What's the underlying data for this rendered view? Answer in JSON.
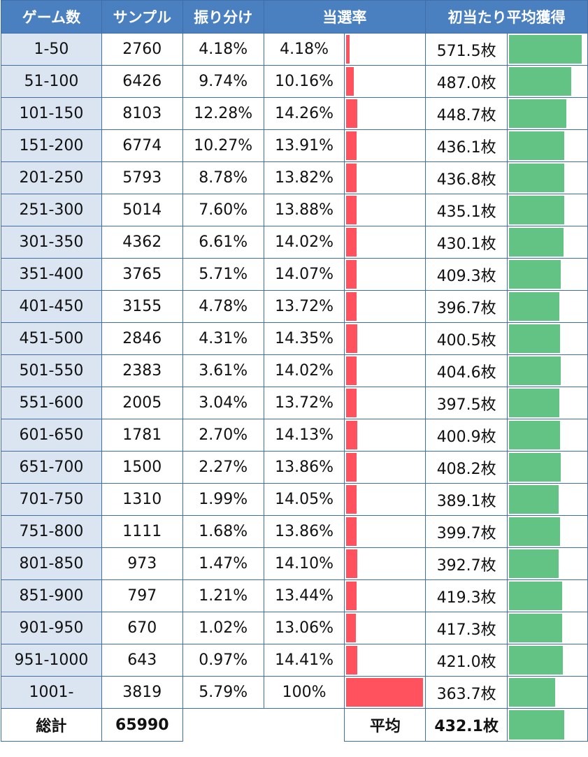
{
  "chart_data": {
    "type": "table",
    "headers": [
      "ゲーム数",
      "サンプル",
      "振り分け",
      "当選率",
      "初当たり平均獲得"
    ],
    "rows": [
      {
        "range": "1-50",
        "sample": "2760",
        "share": "4.18%",
        "rate": "4.18%",
        "rate_value": 4.18,
        "avg": "571.5枚",
        "avg_value": 571.5
      },
      {
        "range": "51-100",
        "sample": "6426",
        "share": "9.74%",
        "rate": "10.16%",
        "rate_value": 10.16,
        "avg": "487.0枚",
        "avg_value": 487.0
      },
      {
        "range": "101-150",
        "sample": "8103",
        "share": "12.28%",
        "rate": "14.26%",
        "rate_value": 14.26,
        "avg": "448.7枚",
        "avg_value": 448.7
      },
      {
        "range": "151-200",
        "sample": "6774",
        "share": "10.27%",
        "rate": "13.91%",
        "rate_value": 13.91,
        "avg": "436.1枚",
        "avg_value": 436.1
      },
      {
        "range": "201-250",
        "sample": "5793",
        "share": "8.78%",
        "rate": "13.82%",
        "rate_value": 13.82,
        "avg": "436.8枚",
        "avg_value": 436.8
      },
      {
        "range": "251-300",
        "sample": "5014",
        "share": "7.60%",
        "rate": "13.88%",
        "rate_value": 13.88,
        "avg": "435.1枚",
        "avg_value": 435.1
      },
      {
        "range": "301-350",
        "sample": "4362",
        "share": "6.61%",
        "rate": "14.02%",
        "rate_value": 14.02,
        "avg": "430.1枚",
        "avg_value": 430.1
      },
      {
        "range": "351-400",
        "sample": "3765",
        "share": "5.71%",
        "rate": "14.07%",
        "rate_value": 14.07,
        "avg": "409.3枚",
        "avg_value": 409.3
      },
      {
        "range": "401-450",
        "sample": "3155",
        "share": "4.78%",
        "rate": "13.72%",
        "rate_value": 13.72,
        "avg": "396.7枚",
        "avg_value": 396.7
      },
      {
        "range": "451-500",
        "sample": "2846",
        "share": "4.31%",
        "rate": "14.35%",
        "rate_value": 14.35,
        "avg": "400.5枚",
        "avg_value": 400.5
      },
      {
        "range": "501-550",
        "sample": "2383",
        "share": "3.61%",
        "rate": "14.02%",
        "rate_value": 14.02,
        "avg": "404.6枚",
        "avg_value": 404.6
      },
      {
        "range": "551-600",
        "sample": "2005",
        "share": "3.04%",
        "rate": "13.72%",
        "rate_value": 13.72,
        "avg": "397.5枚",
        "avg_value": 397.5
      },
      {
        "range": "601-650",
        "sample": "1781",
        "share": "2.70%",
        "rate": "14.13%",
        "rate_value": 14.13,
        "avg": "400.9枚",
        "avg_value": 400.9
      },
      {
        "range": "651-700",
        "sample": "1500",
        "share": "2.27%",
        "rate": "13.86%",
        "rate_value": 13.86,
        "avg": "408.2枚",
        "avg_value": 408.2
      },
      {
        "range": "701-750",
        "sample": "1310",
        "share": "1.99%",
        "rate": "14.05%",
        "rate_value": 14.05,
        "avg": "389.1枚",
        "avg_value": 389.1
      },
      {
        "range": "751-800",
        "sample": "1111",
        "share": "1.68%",
        "rate": "13.86%",
        "rate_value": 13.86,
        "avg": "399.7枚",
        "avg_value": 399.7
      },
      {
        "range": "801-850",
        "sample": "973",
        "share": "1.47%",
        "rate": "14.10%",
        "rate_value": 14.1,
        "avg": "392.7枚",
        "avg_value": 392.7
      },
      {
        "range": "851-900",
        "sample": "797",
        "share": "1.21%",
        "rate": "13.44%",
        "rate_value": 13.44,
        "avg": "419.3枚",
        "avg_value": 419.3
      },
      {
        "range": "901-950",
        "sample": "670",
        "share": "1.02%",
        "rate": "13.06%",
        "rate_value": 13.06,
        "avg": "417.3枚",
        "avg_value": 417.3
      },
      {
        "range": "951-1000",
        "sample": "643",
        "share": "0.97%",
        "rate": "14.41%",
        "rate_value": 14.41,
        "avg": "421.0枚",
        "avg_value": 421.0
      },
      {
        "range": "1001-",
        "sample": "3819",
        "share": "5.79%",
        "rate": "100%",
        "rate_value": 100,
        "avg": "363.7枚",
        "avg_value": 363.7
      }
    ],
    "total": {
      "label": "総計",
      "sample": "65990",
      "avg_label": "平均",
      "avg": "432.1枚",
      "avg_value": 432.1
    },
    "rate_bar_color": "#ff525e",
    "avg_bar_color": "#63c384",
    "header_color": "#4a7fc0",
    "range_cell_color": "#dbe5f1"
  }
}
